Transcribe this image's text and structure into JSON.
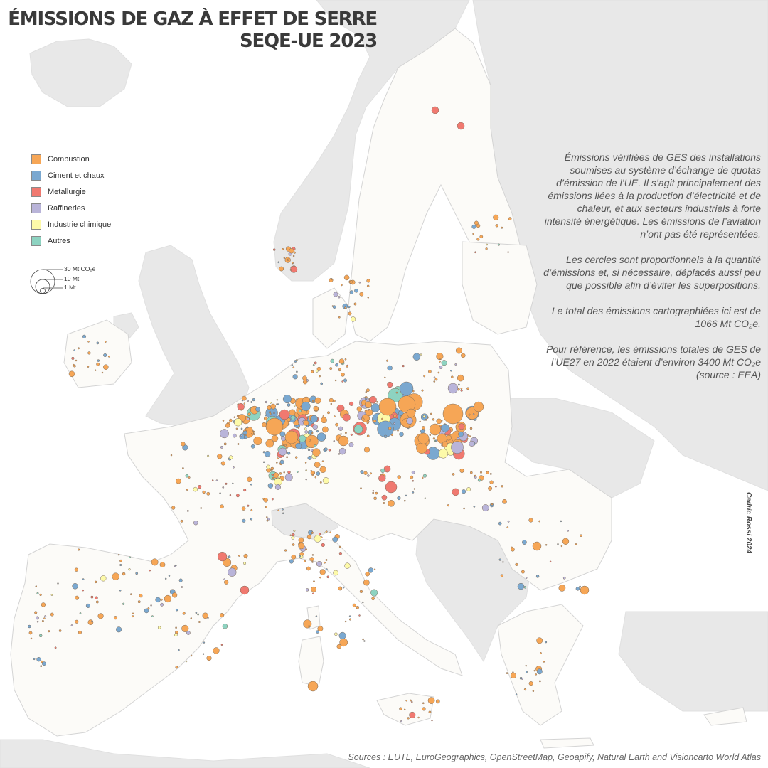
{
  "title": {
    "line1": "ÉMISSIONS DE GAZ À EFFET DE SERRE",
    "line2": "SEQE-UE 2023"
  },
  "colors": {
    "sea": "#ffffff",
    "non_eu_land": "#e8e8e8",
    "eu_land": "#fcfbf8",
    "border": "#dcdcdc"
  },
  "legend": {
    "categories": [
      {
        "label": "Combustion",
        "color": "#f6a656"
      },
      {
        "label": "Ciment et chaux",
        "color": "#7aa8d0"
      },
      {
        "label": "Metallurgie",
        "color": "#f07970"
      },
      {
        "label": "Raffineries",
        "color": "#b9b4d9"
      },
      {
        "label": "Industrie chimique",
        "color": "#fdfaa9"
      },
      {
        "label": "Autres",
        "color": "#8dd3c1"
      }
    ],
    "sizes": [
      {
        "label": "30 Mt CO₂e",
        "value": 30
      },
      {
        "label": "10 Mt",
        "value": 10
      },
      {
        "label": "1 Mt",
        "value": 1
      }
    ]
  },
  "notes": [
    "Émissions vérifiées de GES des installations soumises au système d’échange de quotas d’émission de l’UE. Il s’agit principalement des émissions liées à la production d’électricité et de chaleur, et aux secteurs industriels à forte intensité énergétique. Les émissions de l’aviation n’ont pas été représentées.",
    "Les cercles sont proportionnels à la quantité d’émissions et, si nécessaire, déplacés aussi peu que possible afin d’éviter les superpositions.",
    "Le total des émissions cartographiées ici est de 1066 Mt CO₂e.",
    "Pour référence, les émissions totales de GES de l’UE27 en 2022 étaient d’environ 3400 Mt CO₂e (source : EEA)"
  ],
  "credit": "Cedric Rossi 2024",
  "sources": "Sources : EUTL, EuroGeographics, OpenStreetMap, Geoapify, Natural Earth and Visioncarto World Atlas"
}
